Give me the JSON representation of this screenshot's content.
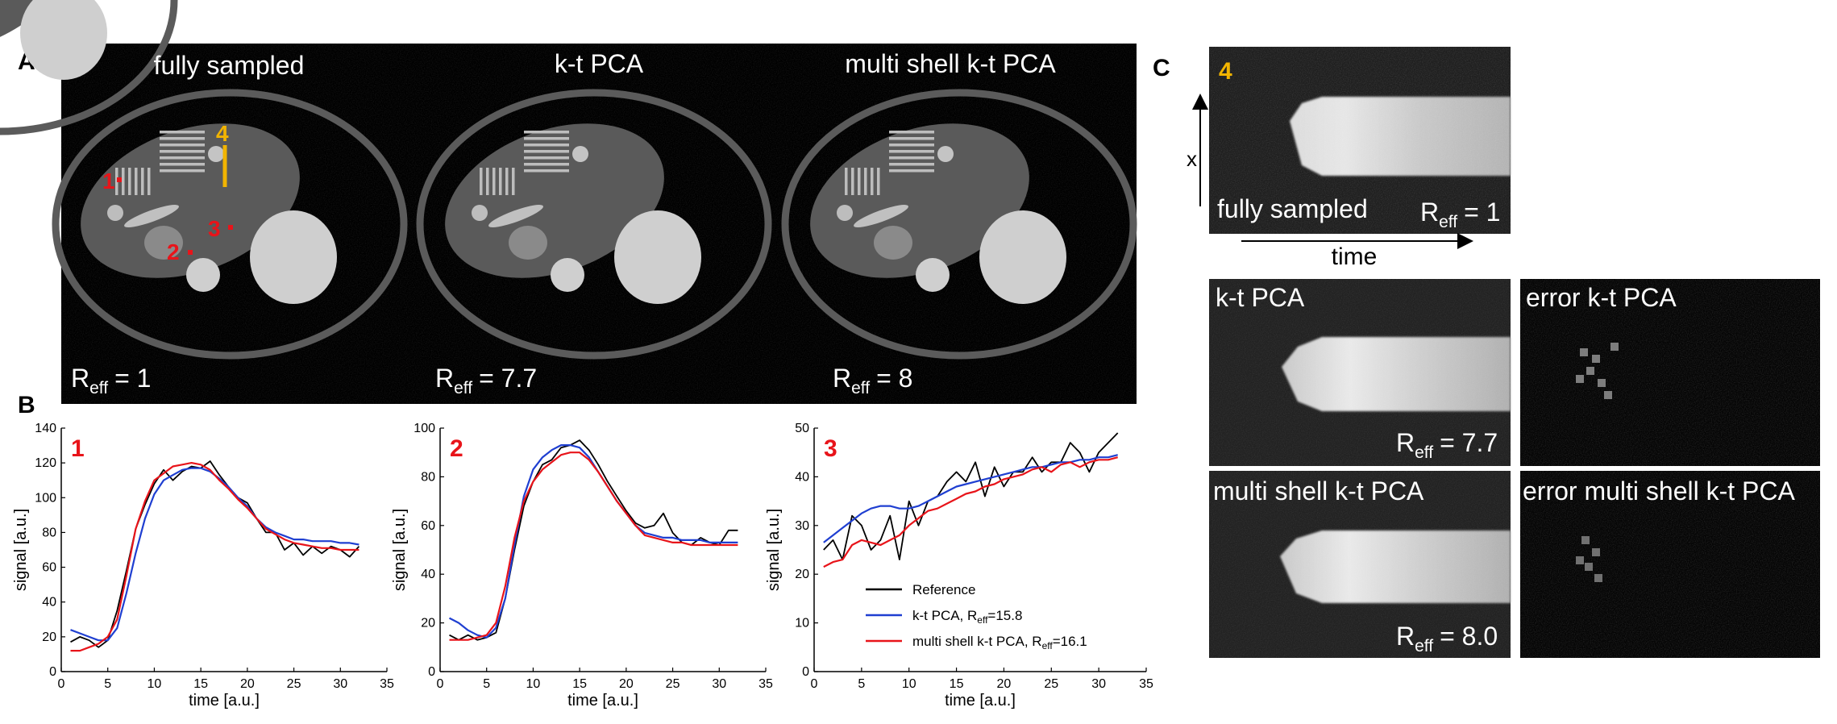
{
  "panel_labels": {
    "a": "A",
    "b": "B",
    "c": "C"
  },
  "panel_a": {
    "titles": [
      "fully sampled",
      "k-t PCA",
      "multi shell k-t PCA"
    ],
    "r_letter": "R",
    "r_subscript": "eff",
    "r_values": [
      "= 1",
      "= 7.7",
      "= 8"
    ],
    "roi_labels": [
      "1",
      "2",
      "3",
      "4"
    ]
  },
  "legend": {
    "reference": "Reference",
    "ktpca_prefix": "k-t PCA, R",
    "ktpca_suffix": "=15.8",
    "ms_prefix": "multi shell k-t PCA, R",
    "ms_suffix": "=16.1",
    "sub": "eff"
  },
  "panel_c": {
    "roi": "4",
    "x_label": "x",
    "time_label": "time",
    "titles": [
      "fully sampled",
      "k-t PCA",
      "multi shell k-t PCA",
      "error k-t PCA",
      "error multi shell k-t PCA"
    ],
    "r_letter": "R",
    "r_subscript": "eff",
    "r_values": [
      "= 1",
      "= 7.7",
      "= 8.0"
    ]
  },
  "colors": {
    "reference": "#000000",
    "ktpca": "#1f3fd1",
    "multishell": "#e8141a",
    "roi_red": "#e8141a",
    "roi_yellow": "#f2b400"
  },
  "chart_data": [
    {
      "type": "line",
      "label": "1",
      "xlabel": "time [a.u.]",
      "ylabel": "signal [a.u.]",
      "xlim": [
        0,
        35
      ],
      "ylim": [
        0,
        140
      ],
      "xticks": [
        0,
        5,
        10,
        15,
        20,
        25,
        30,
        35
      ],
      "yticks": [
        0,
        20,
        40,
        60,
        80,
        100,
        120,
        140
      ],
      "x": [
        1,
        2,
        3,
        4,
        5,
        6,
        7,
        8,
        9,
        10,
        11,
        12,
        13,
        14,
        15,
        16,
        17,
        18,
        19,
        20,
        21,
        22,
        23,
        24,
        25,
        26,
        27,
        28,
        29,
        30,
        31,
        32
      ],
      "series": [
        {
          "name": "Reference",
          "values": [
            17,
            20,
            18,
            14,
            18,
            35,
            58,
            82,
            96,
            108,
            116,
            110,
            115,
            118,
            117,
            121,
            113,
            106,
            100,
            97,
            88,
            80,
            80,
            70,
            74,
            67,
            72,
            68,
            72,
            70,
            66,
            72
          ]
        },
        {
          "name": "k-t PCA, Reff=15.8",
          "values": [
            24,
            22,
            20,
            18,
            18,
            25,
            45,
            68,
            88,
            102,
            110,
            113,
            116,
            117,
            117,
            115,
            111,
            106,
            100,
            95,
            88,
            83,
            80,
            78,
            76,
            76,
            75,
            75,
            75,
            74,
            74,
            73
          ]
        },
        {
          "name": "multi shell k-t PCA, Reff=16.1",
          "values": [
            12,
            12,
            14,
            16,
            20,
            30,
            55,
            82,
            98,
            110,
            114,
            118,
            119,
            120,
            119,
            116,
            110,
            105,
            99,
            94,
            88,
            82,
            79,
            76,
            74,
            73,
            72,
            71,
            71,
            70,
            70,
            70
          ]
        }
      ]
    },
    {
      "type": "line",
      "label": "2",
      "xlabel": "time [a.u.]",
      "ylabel": "signal [a.u.]",
      "xlim": [
        0,
        35
      ],
      "ylim": [
        0,
        100
      ],
      "xticks": [
        0,
        5,
        10,
        15,
        20,
        25,
        30,
        35
      ],
      "yticks": [
        0,
        20,
        40,
        60,
        80,
        100
      ],
      "x": [
        1,
        2,
        3,
        4,
        5,
        6,
        7,
        8,
        9,
        10,
        11,
        12,
        13,
        14,
        15,
        16,
        17,
        18,
        19,
        20,
        21,
        22,
        23,
        24,
        25,
        26,
        27,
        28,
        29,
        30,
        31,
        32
      ],
      "series": [
        {
          "name": "Reference",
          "values": [
            15,
            13,
            15,
            13,
            14,
            16,
            30,
            50,
            68,
            78,
            85,
            87,
            92,
            93,
            95,
            91,
            85,
            78,
            72,
            66,
            61,
            59,
            60,
            65,
            57,
            53,
            52,
            55,
            53,
            52,
            58,
            58
          ]
        },
        {
          "name": "k-t PCA, Reff=15.8",
          "values": [
            22,
            20,
            17,
            15,
            14,
            18,
            30,
            52,
            72,
            83,
            88,
            91,
            93,
            93,
            92,
            88,
            82,
            76,
            70,
            65,
            60,
            57,
            56,
            55,
            55,
            54,
            54,
            54,
            53,
            53,
            53,
            53
          ]
        },
        {
          "name": "multi shell k-t PCA, Reff=16.1",
          "values": [
            13,
            13,
            13,
            14,
            15,
            20,
            35,
            55,
            70,
            78,
            83,
            86,
            89,
            90,
            90,
            87,
            82,
            76,
            70,
            65,
            60,
            56,
            55,
            54,
            53,
            53,
            52,
            52,
            52,
            52,
            52,
            52
          ]
        }
      ]
    },
    {
      "type": "line",
      "label": "3",
      "xlabel": "time [a.u.]",
      "ylabel": "signal [a.u.]",
      "xlim": [
        0,
        35
      ],
      "ylim": [
        0,
        50
      ],
      "xticks": [
        0,
        5,
        10,
        15,
        20,
        25,
        30,
        35
      ],
      "yticks": [
        0,
        10,
        20,
        30,
        40,
        50
      ],
      "x": [
        1,
        2,
        3,
        4,
        5,
        6,
        7,
        8,
        9,
        10,
        11,
        12,
        13,
        14,
        15,
        16,
        17,
        18,
        19,
        20,
        21,
        22,
        23,
        24,
        25,
        26,
        27,
        28,
        29,
        30,
        31,
        32
      ],
      "series": [
        {
          "name": "Reference",
          "values": [
            25,
            27,
            23,
            32,
            30,
            25,
            27,
            32,
            23,
            35,
            30,
            35,
            36,
            39,
            41,
            39,
            43,
            36,
            42,
            38,
            41,
            41,
            44,
            41,
            43,
            43,
            47,
            45,
            41,
            45,
            47,
            49
          ]
        },
        {
          "name": "k-t PCA, Reff=15.8",
          "values": [
            26.5,
            28,
            29.5,
            31,
            32.5,
            33.5,
            34,
            34,
            33.5,
            33.5,
            34,
            35,
            36,
            37,
            38,
            38.5,
            39,
            39.5,
            40,
            40.5,
            41,
            41.5,
            42,
            42,
            42.5,
            43,
            43,
            43.5,
            43.5,
            44,
            44,
            44.5
          ]
        },
        {
          "name": "multi shell k-t PCA, Reff=16.1",
          "values": [
            21.5,
            22.5,
            23,
            26,
            27,
            26.5,
            26,
            27,
            28,
            30,
            31.5,
            33,
            33.5,
            34.5,
            35.5,
            36.5,
            37,
            38,
            38.5,
            39.5,
            40,
            40.5,
            41.5,
            42,
            41,
            42.5,
            43,
            42,
            43,
            43.5,
            43.5,
            44
          ]
        }
      ]
    }
  ]
}
